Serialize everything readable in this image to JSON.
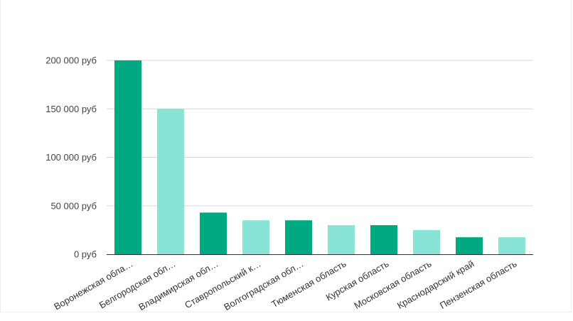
{
  "chart_data": {
    "type": "bar",
    "title": "",
    "xlabel": "",
    "ylabel": "",
    "ylim": [
      0,
      200000
    ],
    "yticks": [
      0,
      50000,
      100000,
      150000,
      200000
    ],
    "ytick_labels": [
      "0 руб",
      "50 000 руб",
      "100 000 руб",
      "150 000 руб",
      "200 000 руб"
    ],
    "grid": true,
    "legend": "none",
    "categories": [
      "Воронежская обла…",
      "Белгородская обл…",
      "Владимирская обл…",
      "Ставропольский к…",
      "Волгоградская обл…",
      "Тюменская область",
      "Курская область",
      "Московская область",
      "Краснодарский край",
      "Пензенская область"
    ],
    "values": [
      200000,
      150000,
      43000,
      35000,
      35000,
      30000,
      30000,
      25000,
      17500,
      17500
    ],
    "colors": [
      "#00a982",
      "#8ae3d7"
    ]
  }
}
